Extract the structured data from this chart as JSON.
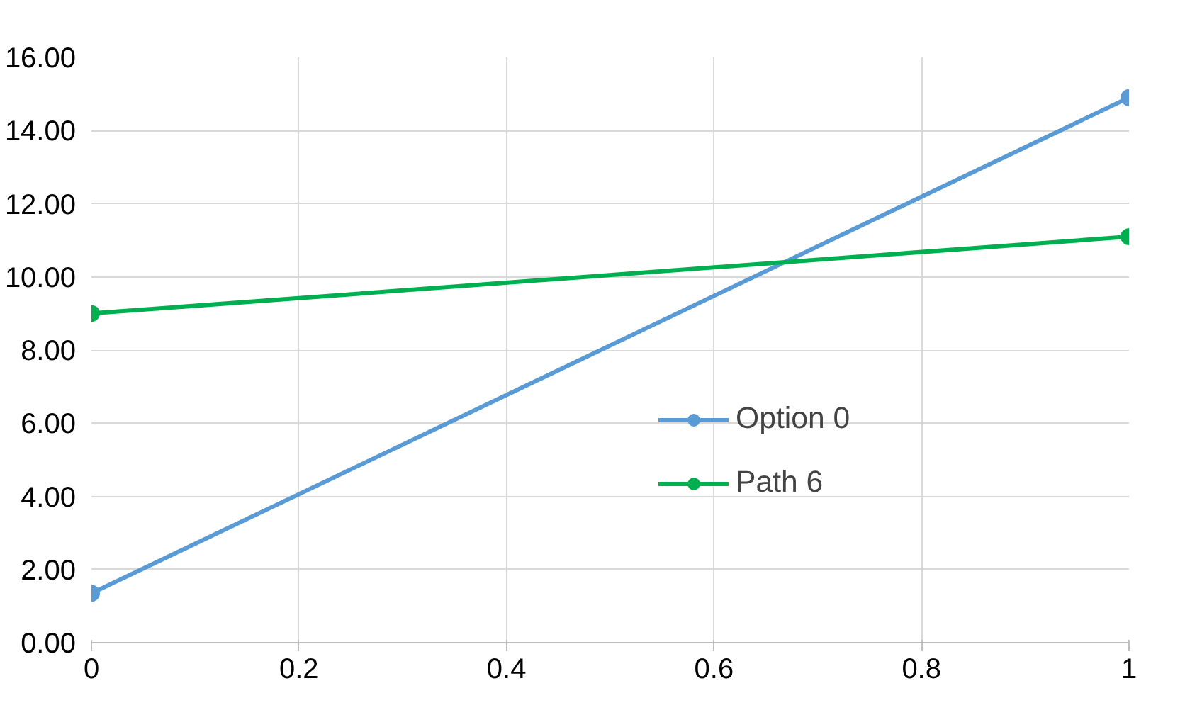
{
  "chart_data": {
    "type": "line",
    "x": [
      0,
      1
    ],
    "series": [
      {
        "name": "Option 0",
        "color": "#5b9bd5",
        "values": [
          1.35,
          14.9
        ]
      },
      {
        "name": "Path 6",
        "color": "#00b050",
        "values": [
          9.0,
          11.1
        ]
      }
    ],
    "xlim": [
      0,
      1
    ],
    "xticks": [
      0,
      0.2,
      0.4,
      0.6,
      0.8,
      1
    ],
    "ylim": [
      0,
      16
    ],
    "yticks": [
      {
        "value": 0,
        "label": "0.00"
      },
      {
        "value": 2,
        "label": "2.00"
      },
      {
        "value": 4,
        "label": "4.00"
      },
      {
        "value": 6,
        "label": "6.00"
      },
      {
        "value": 8,
        "label": "8.00"
      },
      {
        "value": 10,
        "label": "10.00"
      },
      {
        "value": 12,
        "label": "12.00"
      },
      {
        "value": 14,
        "label": "14.00"
      },
      {
        "value": 16,
        "label": "16.00"
      }
    ],
    "grid": true,
    "legend": "right",
    "marker": "circle",
    "line_style": "solid"
  }
}
